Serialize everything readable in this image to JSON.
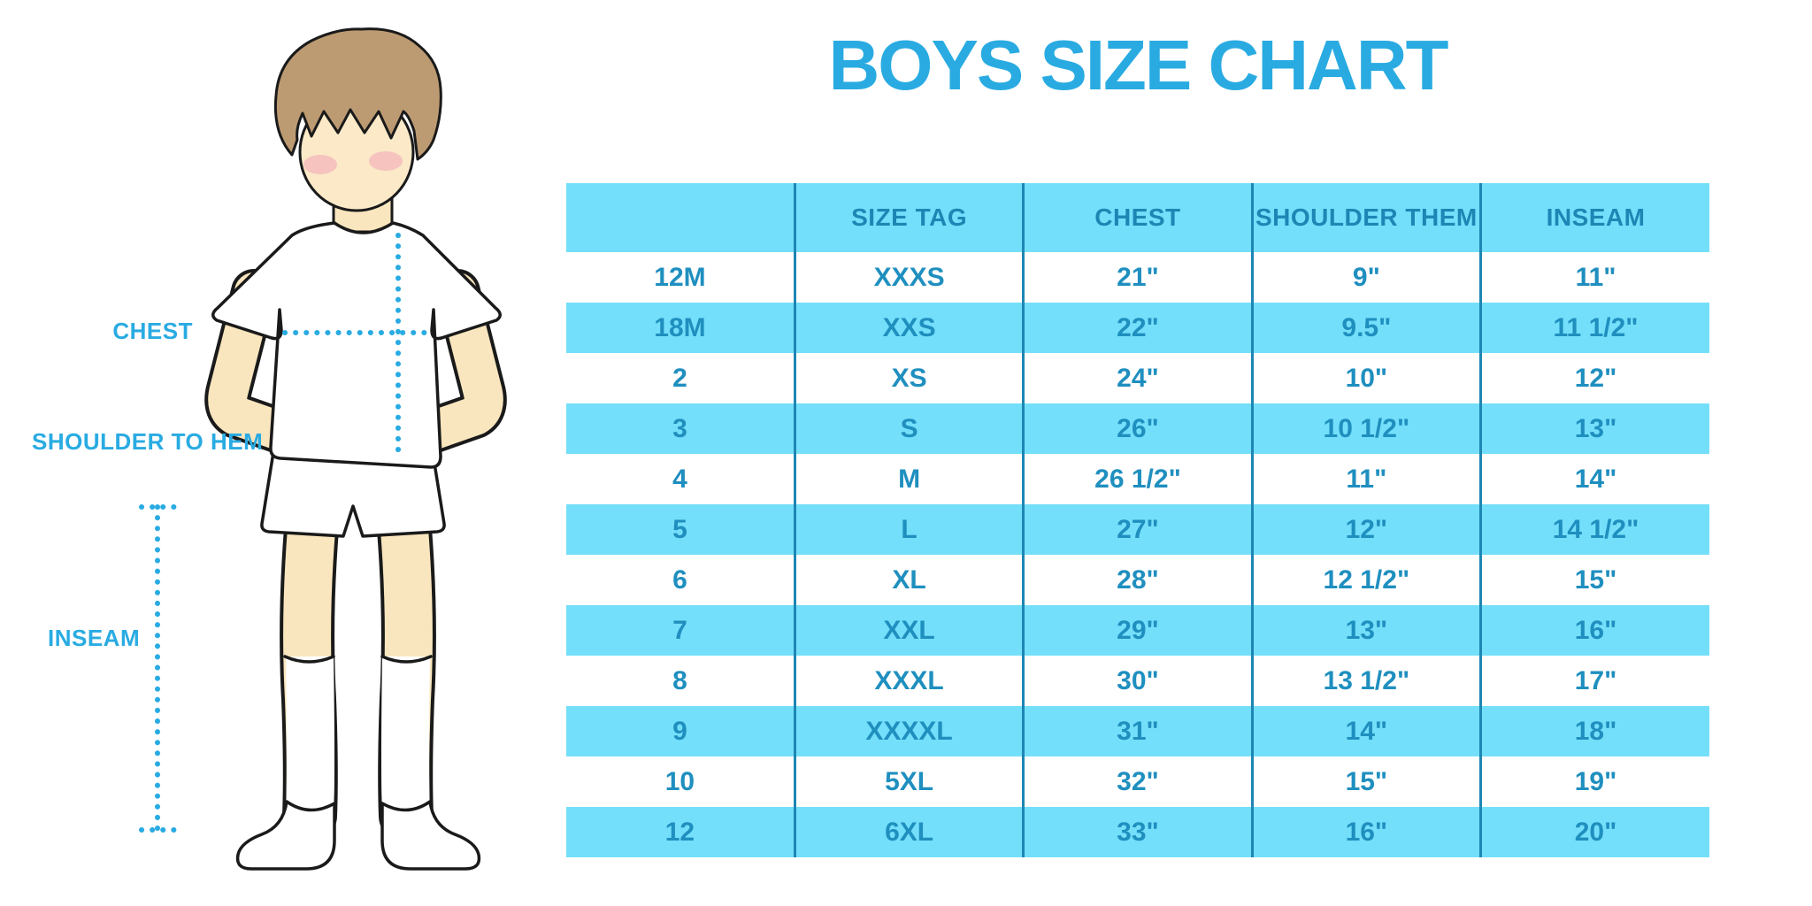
{
  "title": "BOYS SIZE CHART",
  "diagram": {
    "labels": {
      "chest": "CHEST",
      "shoulder_to_hem": "SHOULDER TO HEM",
      "inseam": "INSEAM"
    }
  },
  "colors": {
    "accent": "#29ABE2",
    "band": "#74DFFA",
    "header_text": "#1D86B4",
    "table_text": "#1F8FBF",
    "separator": "#1D86B4",
    "skin": "#FAE6BE",
    "face": "#FBE9C8",
    "hair": "#BD9B72",
    "blush": "#F2A4B6",
    "outline": "#1A1A1A",
    "garment": "#FFFFFF"
  },
  "chart_data": {
    "type": "table",
    "title": "BOYS SIZE CHART",
    "columns": [
      "",
      "SIZE TAG",
      "CHEST",
      "SHOULDER THEM",
      "INSEAM"
    ],
    "rows": [
      [
        "12M",
        "XXXS",
        "21\"",
        "9\"",
        "11\""
      ],
      [
        "18M",
        "XXS",
        "22\"",
        "9.5\"",
        "11 1/2\""
      ],
      [
        "2",
        "XS",
        "24\"",
        "10\"",
        "12\""
      ],
      [
        "3",
        "S",
        "26\"",
        "10 1/2\"",
        "13\""
      ],
      [
        "4",
        "M",
        "26 1/2\"",
        "11\"",
        "14\""
      ],
      [
        "5",
        "L",
        "27\"",
        "12\"",
        "14 1/2\""
      ],
      [
        "6",
        "XL",
        "28\"",
        "12 1/2\"",
        "15\""
      ],
      [
        "7",
        "XXL",
        "29\"",
        "13\"",
        "16\""
      ],
      [
        "8",
        "XXXL",
        "30\"",
        "13 1/2\"",
        "17\""
      ],
      [
        "9",
        "XXXXL",
        "31\"",
        "14\"",
        "18\""
      ],
      [
        "10",
        "5XL",
        "32\"",
        "15\"",
        "19\""
      ],
      [
        "12",
        "6XL",
        "33\"",
        "16\"",
        "20\""
      ]
    ]
  }
}
